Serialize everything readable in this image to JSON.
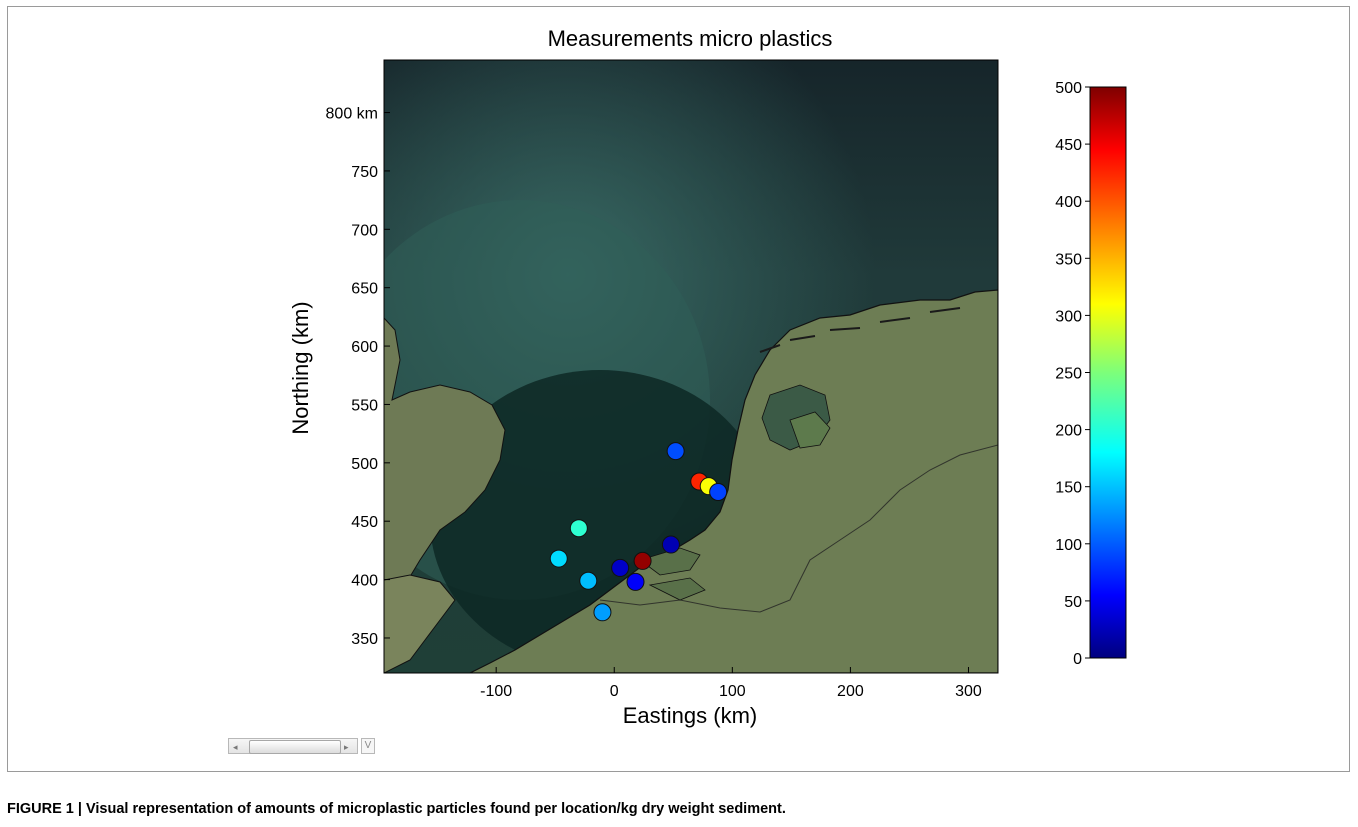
{
  "chart_data": {
    "type": "scatter",
    "title": "Measurements micro plastics",
    "xlabel": "Eastings (km)",
    "ylabel": "Northing (km)",
    "xlim": [
      -195,
      325
    ],
    "ylim": [
      320,
      845
    ],
    "xticks": [
      -100,
      0,
      100,
      200,
      300
    ],
    "xtick_labels": [
      "-100",
      "0",
      "100",
      "200",
      "300"
    ],
    "yticks": [
      350,
      400,
      450,
      500,
      550,
      600,
      650,
      700,
      750,
      800
    ],
    "ytick_labels": [
      "350",
      "400",
      "450",
      "500",
      "550",
      "600",
      "650",
      "700",
      "750",
      "800 km"
    ],
    "colorbar": {
      "range": [
        0,
        500
      ],
      "ticks": [
        0,
        50,
        100,
        150,
        200,
        250,
        300,
        350,
        400,
        450,
        500
      ],
      "tick_labels": [
        "0",
        "50",
        "100",
        "150",
        "200",
        "250",
        "300",
        "350",
        "400",
        "450",
        "500"
      ],
      "colormap": "jet"
    },
    "background": "satellite map of the southern North Sea, eastern England and the Netherlands",
    "points": [
      {
        "x": 52,
        "y": 510,
        "value": 100
      },
      {
        "x": 72,
        "y": 484,
        "value": 420
      },
      {
        "x": 80,
        "y": 480,
        "value": 310
      },
      {
        "x": 88,
        "y": 475,
        "value": 95
      },
      {
        "x": -30,
        "y": 444,
        "value": 210
      },
      {
        "x": 48,
        "y": 430,
        "value": 25
      },
      {
        "x": 24,
        "y": 416,
        "value": 490
      },
      {
        "x": -47,
        "y": 418,
        "value": 170
      },
      {
        "x": 5,
        "y": 410,
        "value": 35
      },
      {
        "x": -22,
        "y": 399,
        "value": 155
      },
      {
        "x": 18,
        "y": 398,
        "value": 60
      },
      {
        "x": -10,
        "y": 372,
        "value": 140
      }
    ]
  },
  "slider": {
    "left_arrow": "◂",
    "right_arrow": "▸",
    "button_label": "V"
  },
  "caption": "FIGURE 1 | Visual representation of amounts of microplastic particles found per location/kg dry weight sediment."
}
